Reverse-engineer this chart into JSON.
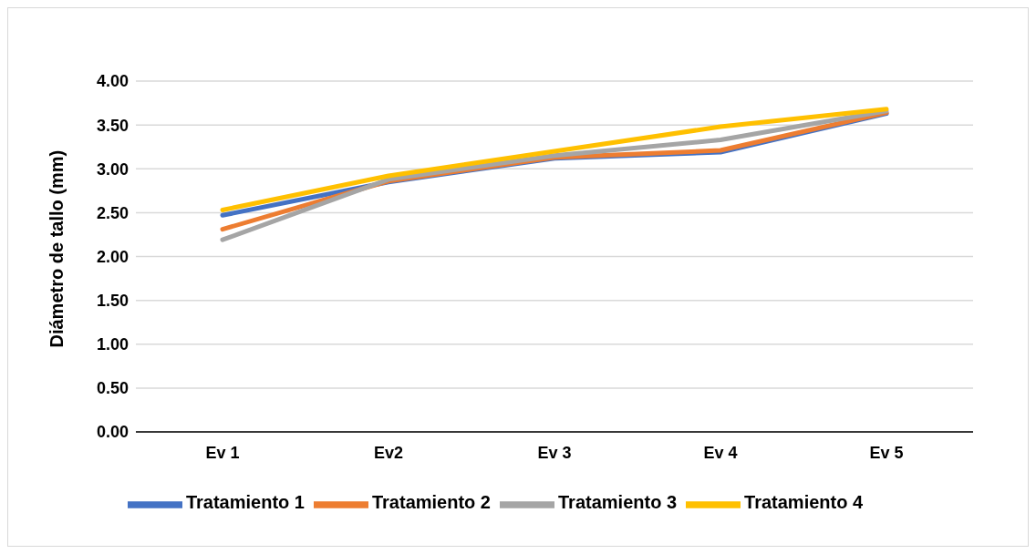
{
  "chart_data": {
    "type": "line",
    "ylabel": "Diámetro de tallo (mm)",
    "categories": [
      "Ev 1",
      "Ev2",
      "Ev 3",
      "Ev 4",
      "Ev 5"
    ],
    "series": [
      {
        "name": "Tratamiento 1",
        "color": "#4472c4",
        "values": [
          2.47,
          2.85,
          3.12,
          3.19,
          3.63
        ]
      },
      {
        "name": "Tratamiento 2",
        "color": "#ed7d31",
        "values": [
          2.31,
          2.86,
          3.13,
          3.21,
          3.64
        ]
      },
      {
        "name": "Tratamiento 3",
        "color": "#a5a5a5",
        "values": [
          2.19,
          2.88,
          3.15,
          3.33,
          3.66
        ]
      },
      {
        "name": "Tratamiento 4",
        "color": "#ffc000",
        "values": [
          2.53,
          2.92,
          3.2,
          3.48,
          3.68
        ]
      }
    ],
    "ylim": [
      0,
      4
    ],
    "yticks": [
      {
        "value": 0,
        "label": "0.00"
      },
      {
        "value": 0.5,
        "label": "0.50"
      },
      {
        "value": 1,
        "label": "1.00"
      },
      {
        "value": 1.5,
        "label": "1.50"
      },
      {
        "value": 2,
        "label": "2.00"
      },
      {
        "value": 2.5,
        "label": "2.50"
      },
      {
        "value": 3,
        "label": "3.00"
      },
      {
        "value": 3.5,
        "label": "3.50"
      },
      {
        "value": 4,
        "label": "4.00"
      }
    ],
    "grid": "y",
    "legend": "bottom",
    "marker": "none",
    "line_style": "solid"
  }
}
